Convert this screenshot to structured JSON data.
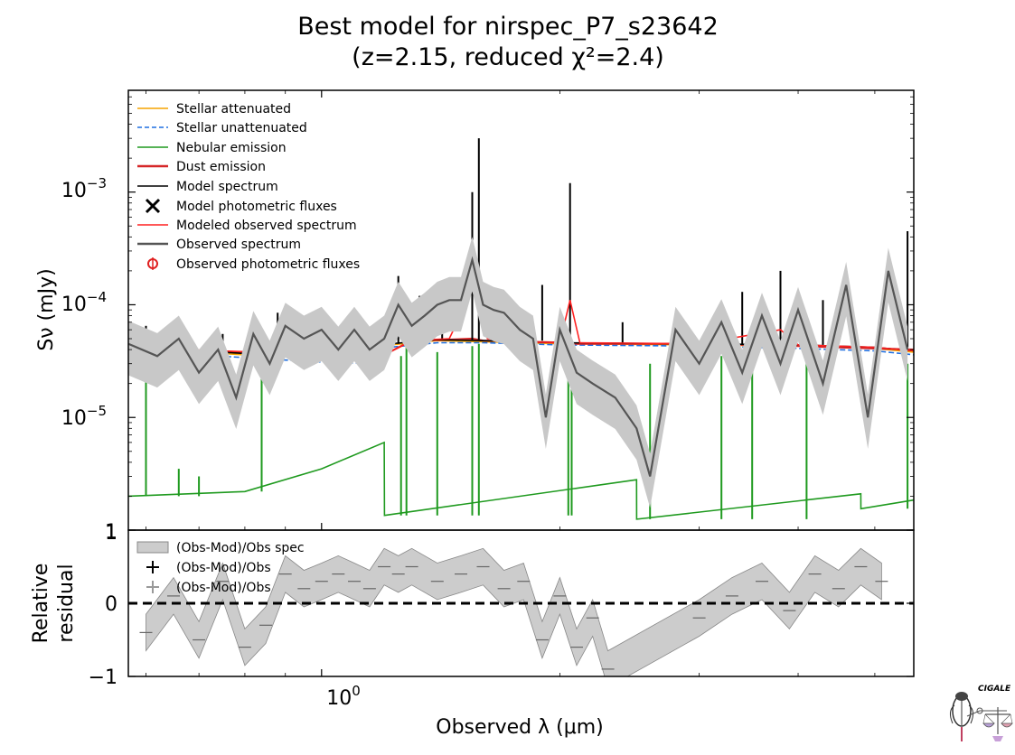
{
  "chart_data": [
    {
      "panel": "main",
      "type": "line",
      "title_line1": "Best model for nirspec_P7_s23642",
      "title_line2": "(z=2.15, reduced χ²=2.4)",
      "xlabel": "Observed λ (μm)",
      "ylabel": "Sν (mJy)",
      "xscale": "log",
      "yscale": "log",
      "xlim": [
        0.57,
        5.6
      ],
      "ylim": [
        1e-06,
        0.008
      ],
      "yticks": [
        {
          "value": 1e-05,
          "label": "10−5"
        },
        {
          "value": 0.0001,
          "label": "10−4"
        },
        {
          "value": 0.001,
          "label": "10−3"
        }
      ],
      "y_bottom_label": "1",
      "xticks": [
        {
          "value": 1.0,
          "label": "100"
        }
      ],
      "grid": false,
      "legend_position": "upper-left",
      "series": [
        {
          "name": "Stellar attenuated",
          "color": "#f5a300",
          "x": [
            0.57,
            0.7,
            0.85,
            1.0,
            1.2,
            1.22,
            1.4,
            1.6,
            2.0,
            3.0,
            4.0,
            5.0,
            5.6
          ],
          "y": [
            4.2e-05,
            3.8e-05,
            3.5e-05,
            3.4e-05,
            3.3e-05,
            4.4e-05,
            4.8e-05,
            4.7e-05,
            4.5e-05,
            4.4e-05,
            4.3e-05,
            4.1e-05,
            3.8e-05
          ]
        },
        {
          "name": "Stellar unattenuated",
          "color": "#1f6fe0",
          "dashed": true,
          "x": [
            0.57,
            0.7,
            0.85,
            1.0,
            1.2,
            1.22,
            1.4,
            1.6,
            2.0,
            3.0,
            4.0,
            5.0,
            5.6
          ],
          "y": [
            4e-05,
            3.6e-05,
            3.3e-05,
            3.1e-05,
            3e-05,
            4.2e-05,
            4.6e-05,
            4.6e-05,
            4.4e-05,
            4.3e-05,
            4.1e-05,
            3.9e-05,
            3.6e-05
          ]
        },
        {
          "name": "Nebular emission",
          "color": "#1f9a1f",
          "x": [
            0.57,
            0.8,
            1.0,
            1.2,
            1.201,
            2.5,
            2.501,
            4.8,
            4.801,
            5.6
          ],
          "y": [
            2e-06,
            2.2e-06,
            3.5e-06,
            6e-06,
            1.35e-06,
            2.8e-06,
            1.25e-06,
            2.1e-06,
            1.55e-06,
            1.85e-06
          ],
          "lines": [
            {
              "x": 0.6,
              "y": 4.5e-05
            },
            {
              "x": 0.66,
              "y": 3.5e-06
            },
            {
              "x": 0.7,
              "y": 3e-06
            },
            {
              "x": 0.84,
              "y": 2.8e-05
            },
            {
              "x": 1.26,
              "y": 3.5e-05
            },
            {
              "x": 1.28,
              "y": 4.2e-05
            },
            {
              "x": 1.4,
              "y": 3.8e-05
            },
            {
              "x": 1.55,
              "y": 4.3e-05
            },
            {
              "x": 1.58,
              "y": 4.5e-05
            },
            {
              "x": 2.05,
              "y": 4e-05
            },
            {
              "x": 2.07,
              "y": 3.9e-05
            },
            {
              "x": 2.6,
              "y": 3e-05
            },
            {
              "x": 3.2,
              "y": 3.5e-05
            },
            {
              "x": 3.5,
              "y": 3.3e-05
            },
            {
              "x": 4.1,
              "y": 3.1e-05
            },
            {
              "x": 5.5,
              "y": 3e-05
            }
          ]
        },
        {
          "name": "Dust emission",
          "color": "#d62728",
          "x": [
            0.57,
            1.0,
            1.2,
            1.3,
            1.45,
            1.55,
            1.6,
            1.8,
            2.05,
            2.1,
            3.0,
            4.0,
            5.6
          ],
          "y": [
            4.1e-05,
            3.6e-05,
            3.6e-05,
            4.8e-05,
            4.9e-05,
            5e-05,
            4.8e-05,
            4.7e-05,
            4.6e-05,
            4.5e-05,
            4.5e-05,
            4.3e-05,
            4e-05
          ]
        },
        {
          "name": "Model spectrum",
          "color": "#000000",
          "x": [
            0.57,
            0.7,
            0.85,
            1.0,
            1.2,
            1.22,
            1.4,
            1.6,
            2.0,
            3.0,
            4.0,
            5.0,
            5.6
          ],
          "y": [
            4.2e-05,
            3.9e-05,
            3.6e-05,
            3.5e-05,
            3.4e-05,
            4.5e-05,
            4.9e-05,
            4.8e-05,
            4.6e-05,
            4.5e-05,
            4.4e-05,
            4.2e-05,
            3.9e-05
          ],
          "lines": [
            {
              "x": 0.6,
              "y": 6.5e-05
            },
            {
              "x": 0.75,
              "y": 5.5e-05
            },
            {
              "x": 0.88,
              "y": 8.5e-05
            },
            {
              "x": 1.25,
              "y": 0.00018
            },
            {
              "x": 1.33,
              "y": 0.00012
            },
            {
              "x": 1.42,
              "y": 0.00015
            },
            {
              "x": 1.55,
              "y": 0.001
            },
            {
              "x": 1.58,
              "y": 0.003
            },
            {
              "x": 1.9,
              "y": 0.00015
            },
            {
              "x": 2.06,
              "y": 0.0012
            },
            {
              "x": 2.4,
              "y": 7e-05
            },
            {
              "x": 3.4,
              "y": 0.00013
            },
            {
              "x": 3.8,
              "y": 0.0002
            },
            {
              "x": 4.3,
              "y": 0.00011
            },
            {
              "x": 5.5,
              "y": 0.00045
            }
          ]
        },
        {
          "name": "Modeled observed spectrum",
          "color": "#ff2020",
          "x": [
            0.57,
            1.0,
            1.2,
            1.3,
            1.45,
            1.52,
            1.57,
            1.62,
            1.8,
            2.0,
            2.06,
            2.12,
            3.0,
            3.8,
            4.0,
            5.0,
            5.6
          ],
          "y": [
            4.2e-05,
            3.6e-05,
            3.6e-05,
            4.8e-05,
            5e-05,
            0.0001,
            0.00019,
            5e-05,
            4.7e-05,
            4.6e-05,
            0.00011,
            4.6e-05,
            4.5e-05,
            6e-05,
            4.4e-05,
            4.2e-05,
            3.9e-05
          ]
        },
        {
          "name": "Observed spectrum",
          "color": "#555555",
          "x": [
            0.57,
            0.62,
            0.66,
            0.7,
            0.74,
            0.78,
            0.82,
            0.86,
            0.9,
            0.95,
            1.0,
            1.05,
            1.1,
            1.15,
            1.2,
            1.25,
            1.3,
            1.35,
            1.4,
            1.45,
            1.5,
            1.55,
            1.6,
            1.65,
            1.7,
            1.78,
            1.85,
            1.92,
            2.0,
            2.1,
            2.2,
            2.35,
            2.5,
            2.6,
            2.8,
            3.0,
            3.2,
            3.4,
            3.6,
            3.8,
            4.0,
            4.3,
            4.6,
            4.9,
            5.2,
            5.5
          ],
          "y": [
            4.5e-05,
            3.5e-05,
            5e-05,
            2.5e-05,
            4e-05,
            1.5e-05,
            5.5e-05,
            3e-05,
            6.5e-05,
            5e-05,
            6e-05,
            4e-05,
            6e-05,
            4e-05,
            5e-05,
            0.0001,
            6.5e-05,
            8e-05,
            0.0001,
            0.00011,
            0.00011,
            0.00025,
            0.0001,
            9e-05,
            8.5e-05,
            6e-05,
            5e-05,
            1e-05,
            6e-05,
            2.5e-05,
            2e-05,
            1.5e-05,
            8e-06,
            3e-06,
            6e-05,
            3e-05,
            7e-05,
            2.5e-05,
            8e-05,
            3e-05,
            9e-05,
            2e-05,
            0.00015,
            1e-05,
            0.0002,
            4e-05
          ]
        },
        {
          "name": "Model photometric fluxes",
          "marker": "x",
          "color": "#000000",
          "x": [],
          "y": []
        },
        {
          "name": "Observed photometric fluxes",
          "marker": "o",
          "color": "#e02020",
          "x": [],
          "y": []
        }
      ]
    },
    {
      "panel": "residual",
      "type": "line",
      "ylabel_line1": "Relative",
      "ylabel_line2": "residual",
      "ylim": [
        -1,
        1
      ],
      "yticks": [
        {
          "value": 1,
          "label": "1"
        },
        {
          "value": 0,
          "label": "0"
        },
        {
          "value": -1,
          "label": "−1"
        }
      ],
      "legend_position": "upper-left",
      "series": [
        {
          "name": "(Obs-Mod)/Obs spec",
          "color": "#888888",
          "x": [
            0.6,
            0.65,
            0.7,
            0.75,
            0.8,
            0.85,
            0.9,
            0.95,
            1.0,
            1.05,
            1.1,
            1.15,
            1.2,
            1.25,
            1.3,
            1.4,
            1.5,
            1.6,
            1.7,
            1.8,
            1.9,
            2.0,
            2.1,
            2.2,
            2.3,
            3.0,
            3.3,
            3.6,
            3.9,
            4.2,
            4.5,
            4.8,
            5.1
          ],
          "y": [
            -0.4,
            0.1,
            -0.5,
            0.3,
            -0.6,
            -0.3,
            0.4,
            0.2,
            0.3,
            0.4,
            0.3,
            0.2,
            0.5,
            0.4,
            0.5,
            0.3,
            0.4,
            0.5,
            0.2,
            0.3,
            -0.5,
            0.1,
            -0.6,
            -0.2,
            -0.9,
            -0.2,
            0.1,
            0.3,
            -0.1,
            0.4,
            0.2,
            0.5,
            0.3
          ]
        },
        {
          "name": "(Obs-Mod)/Obs",
          "marker": "+",
          "color": "#000000",
          "x": [],
          "y": []
        },
        {
          "name": "(Obs-Mod)/Obs",
          "marker": "+",
          "color": "#999999",
          "x": [],
          "y": []
        }
      ]
    }
  ],
  "logo": {
    "text": "CIGALE"
  }
}
